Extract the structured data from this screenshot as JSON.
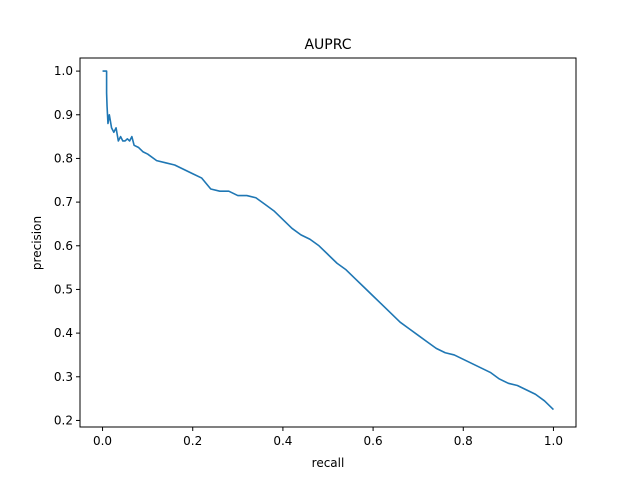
{
  "chart_data": {
    "type": "line",
    "title": "AUPRC",
    "xlabel": "recall",
    "ylabel": "precision",
    "xlim": [
      -0.05,
      1.05
    ],
    "ylim": [
      0.185,
      1.03
    ],
    "xticks": [
      0.0,
      0.2,
      0.4,
      0.6,
      0.8,
      1.0
    ],
    "xtick_labels": [
      "0.0",
      "0.2",
      "0.4",
      "0.6",
      "0.8",
      "1.0"
    ],
    "yticks": [
      0.2,
      0.3,
      0.4,
      0.5,
      0.6,
      0.7,
      0.8,
      0.9,
      1.0
    ],
    "ytick_labels": [
      "0.2",
      "0.3",
      "0.4",
      "0.5",
      "0.6",
      "0.7",
      "0.8",
      "0.9",
      "1.0"
    ],
    "grid": false,
    "legend": "none",
    "series": [
      {
        "color": "#1f77b4",
        "x": [
          0.0,
          0.009,
          0.009,
          0.01,
          0.012,
          0.015,
          0.02,
          0.025,
          0.03,
          0.035,
          0.04,
          0.045,
          0.05,
          0.055,
          0.06,
          0.065,
          0.07,
          0.08,
          0.09,
          0.1,
          0.12,
          0.14,
          0.16,
          0.18,
          0.2,
          0.22,
          0.24,
          0.26,
          0.28,
          0.3,
          0.32,
          0.34,
          0.36,
          0.38,
          0.4,
          0.42,
          0.44,
          0.46,
          0.48,
          0.5,
          0.52,
          0.54,
          0.56,
          0.58,
          0.6,
          0.62,
          0.64,
          0.66,
          0.68,
          0.7,
          0.72,
          0.74,
          0.76,
          0.78,
          0.8,
          0.82,
          0.84,
          0.86,
          0.88,
          0.9,
          0.92,
          0.94,
          0.96,
          0.98,
          1.0
        ],
        "y": [
          1.0,
          1.0,
          0.95,
          0.92,
          0.88,
          0.9,
          0.87,
          0.86,
          0.87,
          0.84,
          0.85,
          0.84,
          0.84,
          0.845,
          0.84,
          0.85,
          0.83,
          0.825,
          0.815,
          0.81,
          0.795,
          0.79,
          0.785,
          0.775,
          0.765,
          0.755,
          0.73,
          0.725,
          0.725,
          0.715,
          0.715,
          0.71,
          0.695,
          0.68,
          0.66,
          0.64,
          0.625,
          0.615,
          0.6,
          0.58,
          0.56,
          0.545,
          0.525,
          0.505,
          0.485,
          0.465,
          0.445,
          0.425,
          0.41,
          0.395,
          0.38,
          0.365,
          0.355,
          0.35,
          0.34,
          0.33,
          0.32,
          0.31,
          0.295,
          0.285,
          0.28,
          0.27,
          0.26,
          0.245,
          0.225
        ]
      }
    ]
  }
}
